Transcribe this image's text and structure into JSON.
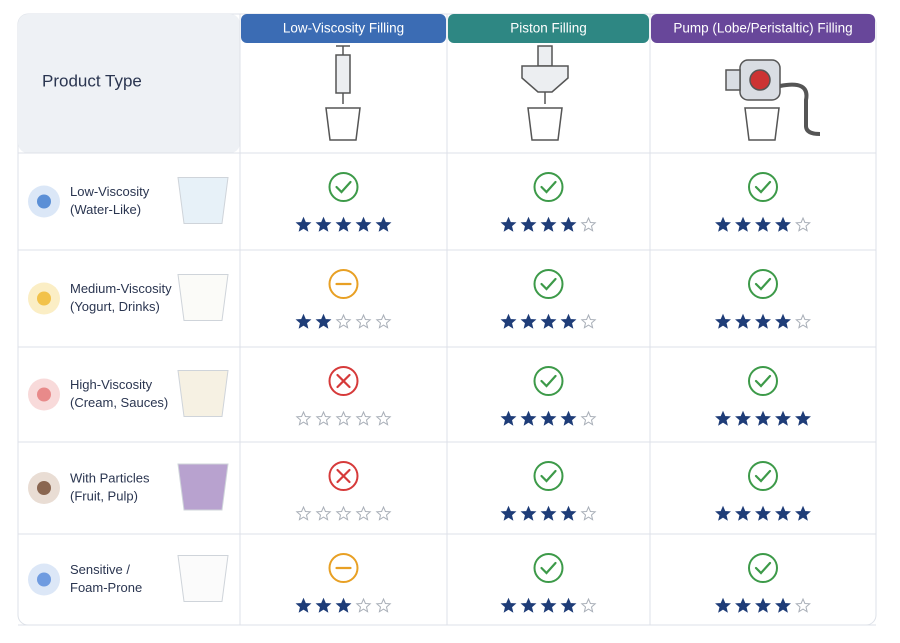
{
  "header": {
    "title": "Product Type",
    "columns": [
      {
        "name": "Low-Viscosity Filling",
        "color": "#3b6cb4"
      },
      {
        "name": "Piston Filling",
        "color": "#2e8783"
      },
      {
        "name": "Pump (Lobe/Peristaltic) Filling",
        "color": "#68479a"
      }
    ]
  },
  "max_rating": 5,
  "rows": [
    {
      "label": [
        "Low-Viscosity",
        "(Water-Like)"
      ],
      "cells": [
        {
          "status": "check",
          "rating": 5
        },
        {
          "status": "check",
          "rating": 4
        },
        {
          "status": "check",
          "rating": 4
        }
      ]
    },
    {
      "label": [
        "Medium-Viscosity",
        "(Yogurt, Drinks)"
      ],
      "cells": [
        {
          "status": "minus",
          "rating": 2
        },
        {
          "status": "check",
          "rating": 4
        },
        {
          "status": "check",
          "rating": 4
        }
      ]
    },
    {
      "label": [
        "High-Viscosity",
        "(Cream, Sauces)"
      ],
      "cells": [
        {
          "status": "cross",
          "rating": 0
        },
        {
          "status": "check",
          "rating": 4
        },
        {
          "status": "check",
          "rating": 5
        }
      ]
    },
    {
      "label": [
        "With Particles",
        "(Fruit, Pulp)"
      ],
      "cells": [
        {
          "status": "cross",
          "rating": 0
        },
        {
          "status": "check",
          "rating": 4
        },
        {
          "status": "check",
          "rating": 5
        }
      ]
    },
    {
      "label": [
        "Sensitive /",
        "Foam-Prone"
      ],
      "cells": [
        {
          "status": "minus",
          "rating": 3
        },
        {
          "status": "check",
          "rating": 4
        },
        {
          "status": "check",
          "rating": 4
        }
      ]
    }
  ]
}
